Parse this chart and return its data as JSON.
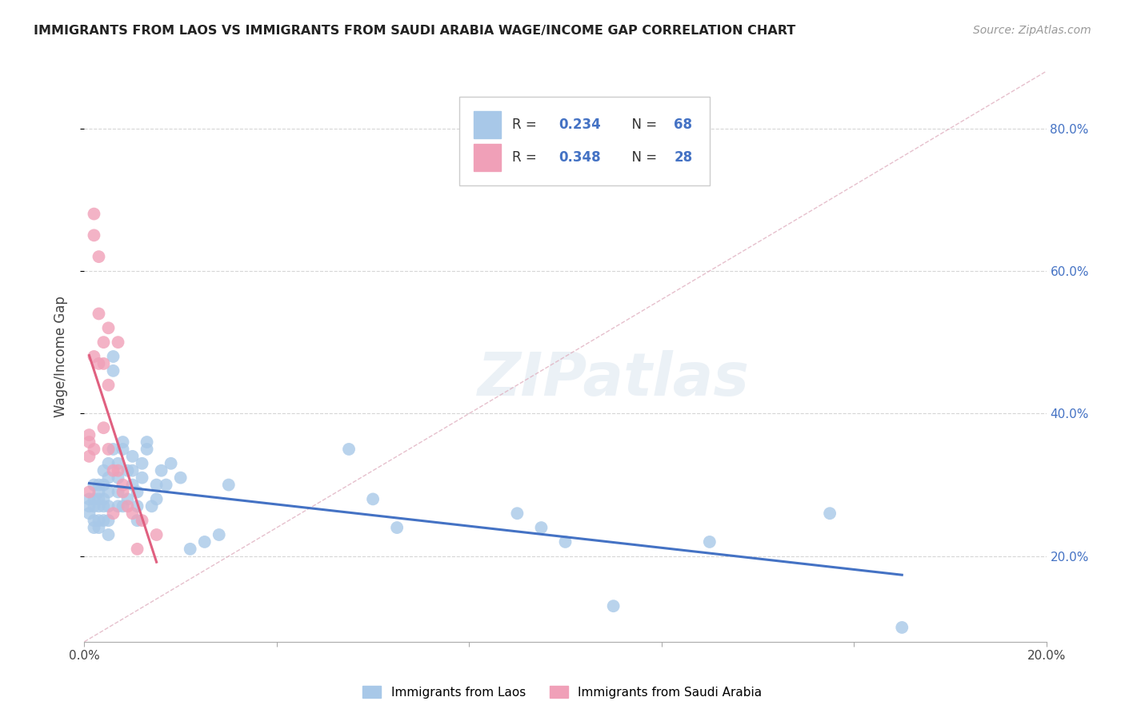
{
  "title": "IMMIGRANTS FROM LAOS VS IMMIGRANTS FROM SAUDI ARABIA WAGE/INCOME GAP CORRELATION CHART",
  "source": "Source: ZipAtlas.com",
  "ylabel": "Wage/Income Gap",
  "xlim": [
    0.0,
    0.2
  ],
  "ylim": [
    0.08,
    0.88
  ],
  "xticks": [
    0.0,
    0.04,
    0.08,
    0.12,
    0.16,
    0.2
  ],
  "yticks": [
    0.2,
    0.4,
    0.6,
    0.8
  ],
  "watermark_text": "ZIPatlas",
  "color_laos": "#a8c8e8",
  "color_saudi": "#f0a0b8",
  "trend_color_laos": "#4472c4",
  "trend_color_saudi": "#e06080",
  "diag_color": "#e0b0c0",
  "background_color": "#ffffff",
  "grid_color": "#cccccc",
  "right_tick_color": "#4472c4",
  "laos_x": [
    0.001,
    0.001,
    0.001,
    0.002,
    0.002,
    0.002,
    0.002,
    0.002,
    0.003,
    0.003,
    0.003,
    0.003,
    0.003,
    0.003,
    0.004,
    0.004,
    0.004,
    0.004,
    0.004,
    0.005,
    0.005,
    0.005,
    0.005,
    0.005,
    0.005,
    0.006,
    0.006,
    0.006,
    0.007,
    0.007,
    0.007,
    0.007,
    0.008,
    0.008,
    0.008,
    0.009,
    0.009,
    0.01,
    0.01,
    0.01,
    0.011,
    0.011,
    0.011,
    0.012,
    0.012,
    0.013,
    0.013,
    0.014,
    0.015,
    0.015,
    0.016,
    0.017,
    0.018,
    0.02,
    0.022,
    0.025,
    0.028,
    0.03,
    0.055,
    0.06,
    0.065,
    0.09,
    0.095,
    0.1,
    0.11,
    0.13,
    0.155,
    0.17
  ],
  "laos_y": [
    0.28,
    0.27,
    0.26,
    0.3,
    0.28,
    0.27,
    0.25,
    0.24,
    0.3,
    0.29,
    0.28,
    0.27,
    0.25,
    0.24,
    0.32,
    0.3,
    0.28,
    0.27,
    0.25,
    0.33,
    0.31,
    0.29,
    0.27,
    0.25,
    0.23,
    0.35,
    0.48,
    0.46,
    0.33,
    0.31,
    0.29,
    0.27,
    0.36,
    0.35,
    0.27,
    0.32,
    0.28,
    0.34,
    0.32,
    0.3,
    0.29,
    0.27,
    0.25,
    0.33,
    0.31,
    0.36,
    0.35,
    0.27,
    0.3,
    0.28,
    0.32,
    0.3,
    0.33,
    0.31,
    0.21,
    0.22,
    0.23,
    0.3,
    0.35,
    0.28,
    0.24,
    0.26,
    0.24,
    0.22,
    0.13,
    0.22,
    0.26,
    0.1
  ],
  "saudi_x": [
    0.001,
    0.001,
    0.001,
    0.001,
    0.002,
    0.002,
    0.002,
    0.002,
    0.003,
    0.003,
    0.003,
    0.004,
    0.004,
    0.004,
    0.005,
    0.005,
    0.005,
    0.006,
    0.006,
    0.007,
    0.007,
    0.008,
    0.008,
    0.009,
    0.01,
    0.011,
    0.012,
    0.015
  ],
  "saudi_y": [
    0.29,
    0.36,
    0.34,
    0.37,
    0.35,
    0.48,
    0.65,
    0.68,
    0.47,
    0.54,
    0.62,
    0.38,
    0.5,
    0.47,
    0.44,
    0.52,
    0.35,
    0.32,
    0.26,
    0.32,
    0.5,
    0.3,
    0.29,
    0.27,
    0.26,
    0.21,
    0.25,
    0.23
  ]
}
